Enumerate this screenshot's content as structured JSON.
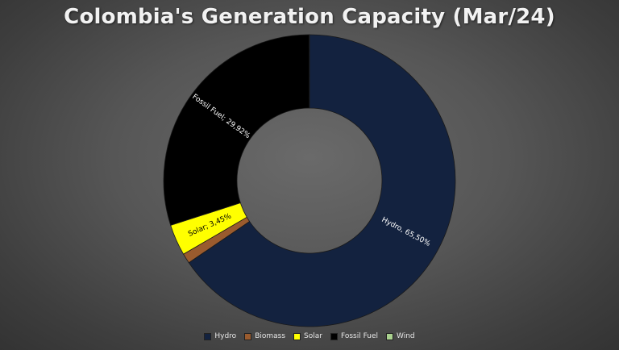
{
  "chart_data": {
    "type": "pie",
    "variant": "doughnut",
    "title": "Colombia's Generation Capacity (Mar/24)",
    "series": [
      {
        "name": "",
        "categories": [
          "Hydro",
          "Biomass",
          "Solar",
          "Fossil Fuel",
          "Wind"
        ],
        "values": [
          65.5,
          1.1,
          3.45,
          29.92,
          0.03
        ],
        "colors": [
          "#13223f",
          "#9a5b2e",
          "#ffff00",
          "#000000",
          "#a9d18e"
        ],
        "data_labels": [
          "Hydro, 65,50%",
          "",
          "Solar; 3,45%",
          "Fossil Fuel; 29,92%",
          ""
        ]
      }
    ],
    "legend": {
      "position": "bottom",
      "entries": [
        "Hydro",
        "Biomass",
        "Solar",
        "Fossil Fuel",
        "Wind"
      ]
    }
  }
}
